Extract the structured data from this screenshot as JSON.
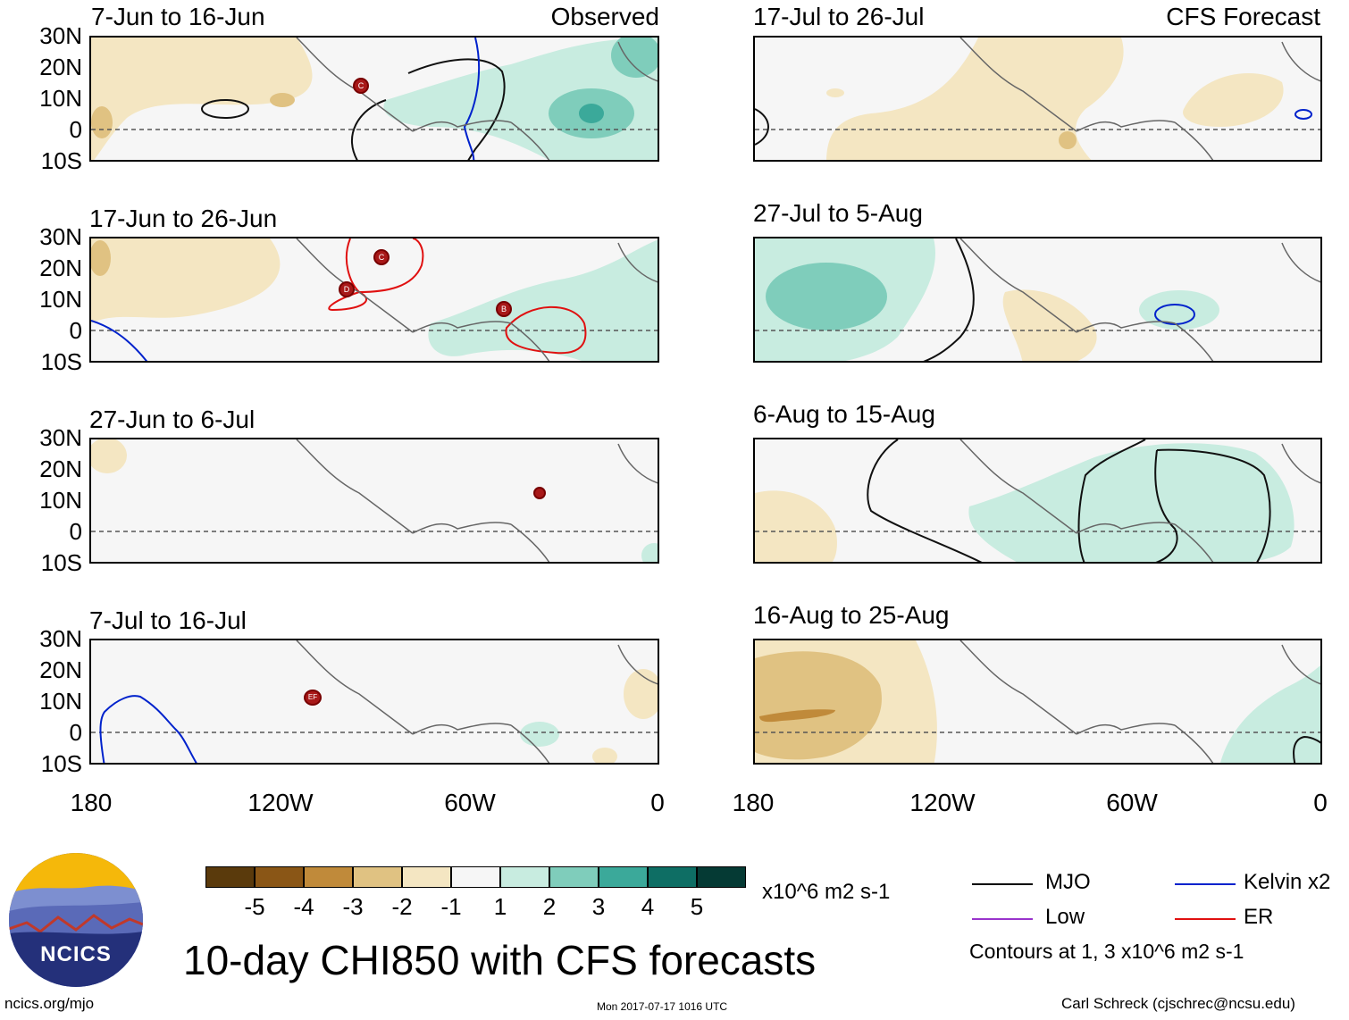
{
  "header": {
    "observed_label": "Observed",
    "forecast_label": "CFS Forecast"
  },
  "panels_left": [
    {
      "title": "7-Jun to 16-Jun"
    },
    {
      "title": "17-Jun to 26-Jun"
    },
    {
      "title": "27-Jun to 6-Jul"
    },
    {
      "title": "7-Jul to 16-Jul"
    }
  ],
  "panels_right": [
    {
      "title": "17-Jul to 26-Jul"
    },
    {
      "title": "27-Jul to 5-Aug"
    },
    {
      "title": "6-Aug to 15-Aug"
    },
    {
      "title": "16-Aug to 25-Aug"
    }
  ],
  "axes": {
    "lat_labels": [
      "30N",
      "20N",
      "10N",
      "0",
      "10S"
    ],
    "lon_labels": [
      "180",
      "120W",
      "60W",
      "0"
    ]
  },
  "storm_labels": {
    "p1": "C",
    "p2a": "C",
    "p2b": "D",
    "p2c": "B",
    "p4": "EF"
  },
  "colorbar": {
    "colors": [
      "#5a3a0c",
      "#8a5616",
      "#c08a3a",
      "#e0c282",
      "#f4e6c2",
      "#f6f6f6",
      "#c8ece0",
      "#7fcdbb",
      "#3ba99a",
      "#0e6e64",
      "#053a34"
    ],
    "labels": [
      "-5",
      "-4",
      "-3",
      "-2",
      "-1",
      "1",
      "2",
      "3",
      "4",
      "5"
    ],
    "units": "x10^6 m2 s-1"
  },
  "legend": {
    "mjo": "MJO",
    "kelvin": "Kelvin x2",
    "low": "Low",
    "er": "ER",
    "contours_note": "Contours at 1, 3 x10^6 m2 s-1",
    "colors": {
      "mjo": "#000000",
      "kelvin": "#0022cc",
      "low": "#9933cc",
      "er": "#e01010"
    }
  },
  "footer": {
    "logo_text": "NCICS",
    "main_title": "10-day CHI850 with CFS forecasts",
    "url": "ncics.org/mjo",
    "timestamp": "Mon 2017-07-17 1016 UTC",
    "credit": "Carl Schreck (cjschrec@ncsu.edu)"
  }
}
